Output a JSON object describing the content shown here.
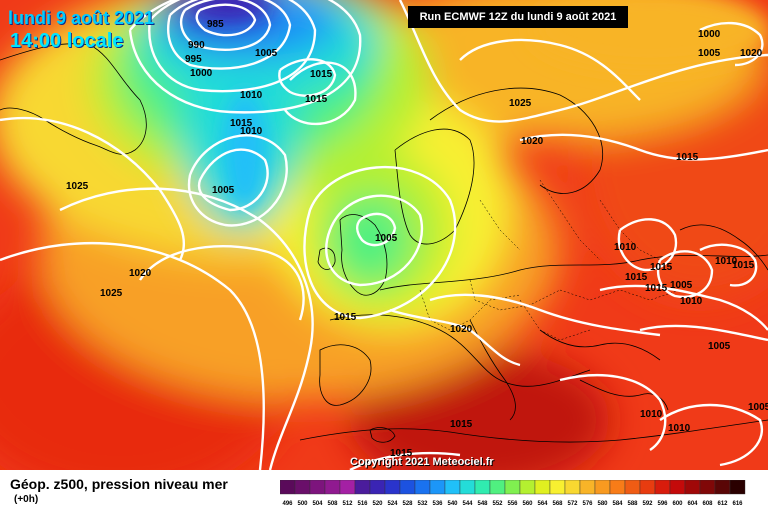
{
  "map": {
    "date_label": "lundi 9 août 2021",
    "time_label": "14:00 locale",
    "run_label": "Run ECMWF 12Z du lundi 9 août 2021",
    "copyright": "Copyright 2021 Meteociel.fr",
    "isobar_labels": [
      "985",
      "990",
      "995",
      "1000",
      "1005",
      "1015",
      "1010",
      "1015",
      "1010",
      "1005",
      "1025",
      "1020",
      "1025",
      "1020",
      "1015",
      "1005",
      "1020",
      "1015",
      "1015",
      "1010",
      "1000",
      "1005",
      "1025",
      "1020",
      "1015",
      "1010",
      "1015",
      "1005",
      "1015",
      "1015",
      "1010",
      "1005",
      "1010",
      "1010",
      "1015",
      "1005",
      "1015"
    ]
  },
  "footer": {
    "title": "Géop. z500, pression niveau mer",
    "step": "(+0h)"
  },
  "legend": {
    "values": [
      "496",
      "500",
      "504",
      "508",
      "512",
      "516",
      "520",
      "524",
      "528",
      "532",
      "536",
      "540",
      "544",
      "548",
      "552",
      "556",
      "560",
      "564",
      "568",
      "572",
      "576",
      "580",
      "584",
      "588",
      "592",
      "596",
      "600",
      "604",
      "608",
      "612",
      "616"
    ],
    "colors": [
      "#5a0a5a",
      "#6a0f6a",
      "#7d147d",
      "#901a90",
      "#a420a4",
      "#4b1c9c",
      "#3a24b4",
      "#2a34cc",
      "#1c52e0",
      "#1a72f0",
      "#1c96f8",
      "#20c0f8",
      "#24dcd8",
      "#30ecb0",
      "#50f080",
      "#80f050",
      "#b4f030",
      "#e0f020",
      "#f8f030",
      "#f8d830",
      "#f8b428",
      "#f89a20",
      "#f87c18",
      "#f05c14",
      "#e83c10",
      "#d81c0c",
      "#c40a0a",
      "#a00808",
      "#800808",
      "#5a0606",
      "#2a0000"
    ]
  }
}
